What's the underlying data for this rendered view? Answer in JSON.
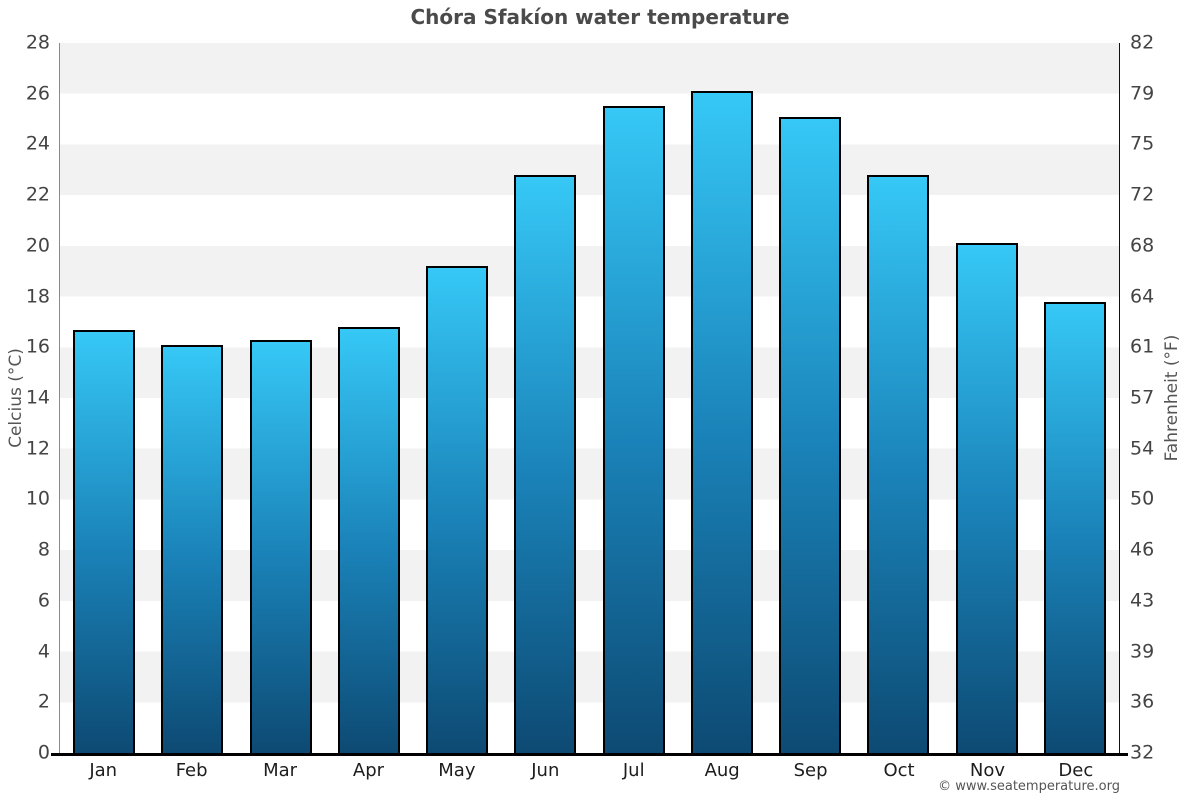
{
  "title": "Chóra Sfakíon water temperature",
  "footer": "© www.seatemperature.org",
  "chart_data": {
    "type": "bar",
    "title": "Chóra Sfakíon water temperature",
    "categories": [
      "Jan",
      "Feb",
      "Mar",
      "Apr",
      "May",
      "Jun",
      "Jul",
      "Aug",
      "Sep",
      "Oct",
      "Nov",
      "Dec"
    ],
    "values": [
      16.7,
      16.1,
      16.3,
      16.8,
      19.2,
      22.8,
      25.5,
      26.1,
      25.1,
      22.8,
      20.1,
      17.8
    ],
    "xlabel": "",
    "ylabel_left": "Celcius (°C)",
    "ylabel_right": "Fahrenheit (°F)",
    "ylim_celsius": [
      0,
      28
    ],
    "yticks_celsius": [
      28,
      26,
      24,
      22,
      20,
      18,
      16,
      14,
      12,
      10,
      8,
      6,
      4,
      2,
      0
    ],
    "yticks_fahrenheit": [
      82,
      79,
      75,
      72,
      68,
      64,
      61,
      57,
      54,
      50,
      46,
      43,
      39,
      36,
      32
    ],
    "grid": "alternating horizontal bands, 2°C per band",
    "legend": "none",
    "band_colors": [
      "#f2f2f2",
      "#ffffff"
    ],
    "bar_gradient_top": "#36c8f6",
    "bar_gradient_mid": "#1a82b8",
    "bar_gradient_bottom": "#0d4a73",
    "bar_border_color": "#000000",
    "axis_line_color": "#000000"
  }
}
